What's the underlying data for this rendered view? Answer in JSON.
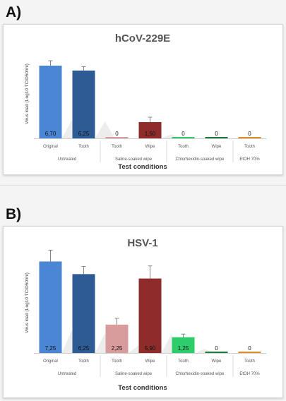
{
  "panels": [
    {
      "letter": "A)"
    },
    {
      "letter": "B)"
    }
  ],
  "chart_data": [
    {
      "type": "bar",
      "title": "hCoV-229E",
      "ylabel": "Virus load (Log10 TCID50/ml)",
      "xlabel": "Test conditions",
      "ylim": [
        0,
        8
      ],
      "grid": false,
      "categories": [
        "Original",
        "Tooth",
        "Tooth",
        "Wipe",
        "Tooth",
        "Wipe",
        "Tooth"
      ],
      "groups": [
        {
          "label": "Untreated",
          "count": 2
        },
        {
          "label": "Saline-soaked wipe",
          "count": 2
        },
        {
          "label": "Chlorhexidin-soaked wipe",
          "count": 2
        },
        {
          "label": "EtOH 70%",
          "count": 1
        }
      ],
      "values": [
        6.7,
        6.25,
        0,
        1.5,
        0,
        0,
        0
      ],
      "errors": [
        0.45,
        0.35,
        0,
        0.45,
        0,
        0,
        0
      ],
      "value_labels": [
        "6,70",
        "6,25",
        "0",
        "1,50",
        "0",
        "0",
        "0"
      ],
      "colors": [
        "#4a86d4",
        "#2f5b94",
        "#d99c9c",
        "#8e2b2b",
        "#2ccd6a",
        "#1f7a3a",
        "#e08a2a"
      ]
    },
    {
      "type": "bar",
      "title": "HSV-1",
      "ylabel": "Virus load (Log10 TCID50/ml)",
      "xlabel": "Test conditions",
      "ylim": [
        0,
        8
      ],
      "grid": false,
      "categories": [
        "Original",
        "Tooth",
        "Tooth",
        "Wipe",
        "Tooth",
        "Wipe",
        "Tooth"
      ],
      "groups": [
        {
          "label": "Untreated",
          "count": 2
        },
        {
          "label": "Saline-soaked wipe",
          "count": 2
        },
        {
          "label": "Chlorhexidin-soaked wipe",
          "count": 2
        },
        {
          "label": "EtOH 70%",
          "count": 1
        }
      ],
      "values": [
        7.25,
        6.25,
        2.25,
        5.9,
        1.25,
        0,
        0
      ],
      "errors": [
        0.9,
        0.6,
        0.5,
        1.0,
        0.25,
        0,
        0
      ],
      "value_labels": [
        "7,25",
        "6,25",
        "2,25",
        "5,90",
        "1,25",
        "0",
        "0"
      ],
      "colors": [
        "#4a86d4",
        "#2f5b94",
        "#d99c9c",
        "#8e2b2b",
        "#2ccd6a",
        "#1f7a3a",
        "#e08a2a"
      ]
    }
  ]
}
